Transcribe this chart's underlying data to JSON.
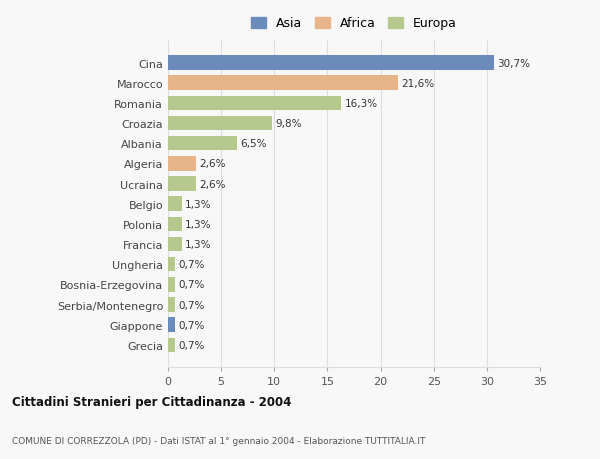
{
  "categories": [
    "Cina",
    "Marocco",
    "Romania",
    "Croazia",
    "Albania",
    "Algeria",
    "Ucraina",
    "Belgio",
    "Polonia",
    "Francia",
    "Ungheria",
    "Bosnia-Erzegovina",
    "Serbia/Montenegro",
    "Giappone",
    "Grecia"
  ],
  "values": [
    30.7,
    21.6,
    16.3,
    9.8,
    6.5,
    2.6,
    2.6,
    1.3,
    1.3,
    1.3,
    0.7,
    0.7,
    0.7,
    0.7,
    0.7
  ],
  "labels": [
    "30,7%",
    "21,6%",
    "16,3%",
    "9,8%",
    "6,5%",
    "2,6%",
    "2,6%",
    "1,3%",
    "1,3%",
    "1,3%",
    "0,7%",
    "0,7%",
    "0,7%",
    "0,7%",
    "0,7%"
  ],
  "continents": [
    "Asia",
    "Africa",
    "Europa",
    "Europa",
    "Europa",
    "Africa",
    "Europa",
    "Europa",
    "Europa",
    "Europa",
    "Europa",
    "Europa",
    "Europa",
    "Asia",
    "Europa"
  ],
  "colors": {
    "Asia": "#6b8cba",
    "Africa": "#e8b48a",
    "Europa": "#b5c98e"
  },
  "xlim": [
    0,
    35
  ],
  "xticks": [
    0,
    5,
    10,
    15,
    20,
    25,
    30,
    35
  ],
  "title": "Cittadini Stranieri per Cittadinanza - 2004",
  "subtitle": "COMUNE DI CORREZZOLA (PD) - Dati ISTAT al 1° gennaio 2004 - Elaborazione TUTTITALIA.IT",
  "background_color": "#f8f8f8",
  "grid_color": "#dddddd"
}
